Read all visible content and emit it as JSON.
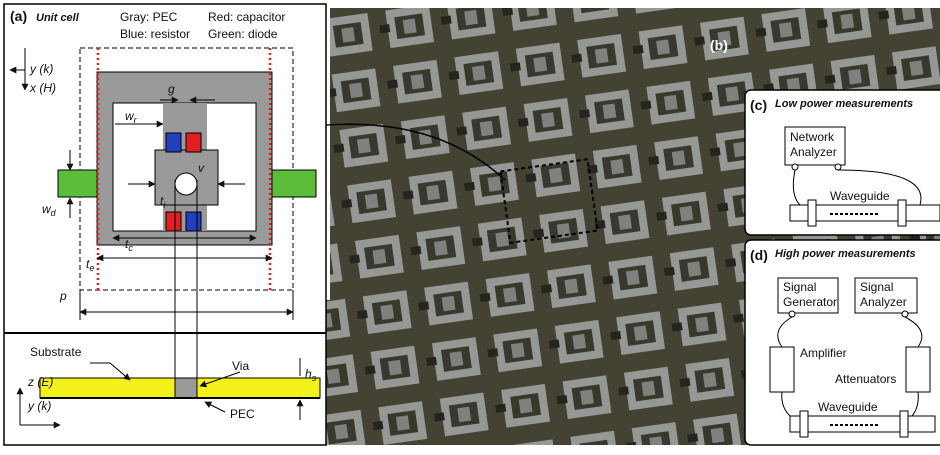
{
  "panel_a": {
    "label": "(a)",
    "title": "Unit cell",
    "legend": [
      "Gray: PEC",
      "Red: capacitor",
      "Blue: resistor",
      "Green: diode"
    ],
    "axis_y_top": "y (k)",
    "axis_x_top": "x (H)",
    "dim_g": "g",
    "dim_wr": {
      "base": "w",
      "sub": "r"
    },
    "dim_v": "v",
    "dim_ti": {
      "base": "t",
      "sub": "i"
    },
    "dim_tc": {
      "base": "t",
      "sub": "c"
    },
    "dim_te": {
      "base": "t",
      "sub": "e"
    },
    "dim_wd": {
      "base": "w",
      "sub": "d"
    },
    "dim_p": "p",
    "substrate": "Substrate",
    "via": "Via",
    "dim_hs": {
      "base": "h",
      "sub": "s"
    },
    "axis_z": "z (E)",
    "axis_y_bottom": "y (k)",
    "pec": "PEC"
  },
  "panel_b": {
    "label": "(b)"
  },
  "panel_c": {
    "label": "(c)",
    "title": "Low power measurements",
    "instrument": [
      "Network",
      "Analyzer"
    ],
    "waveguide": "Waveguide"
  },
  "panel_d": {
    "label": "(d)",
    "title": "High power measurements",
    "generator": [
      "Signal",
      "Generator"
    ],
    "analyzer": [
      "Signal",
      "Analyzer"
    ],
    "amplifier": "Amplifier",
    "attenuators": "Attenuators",
    "waveguide": "Waveguide"
  }
}
